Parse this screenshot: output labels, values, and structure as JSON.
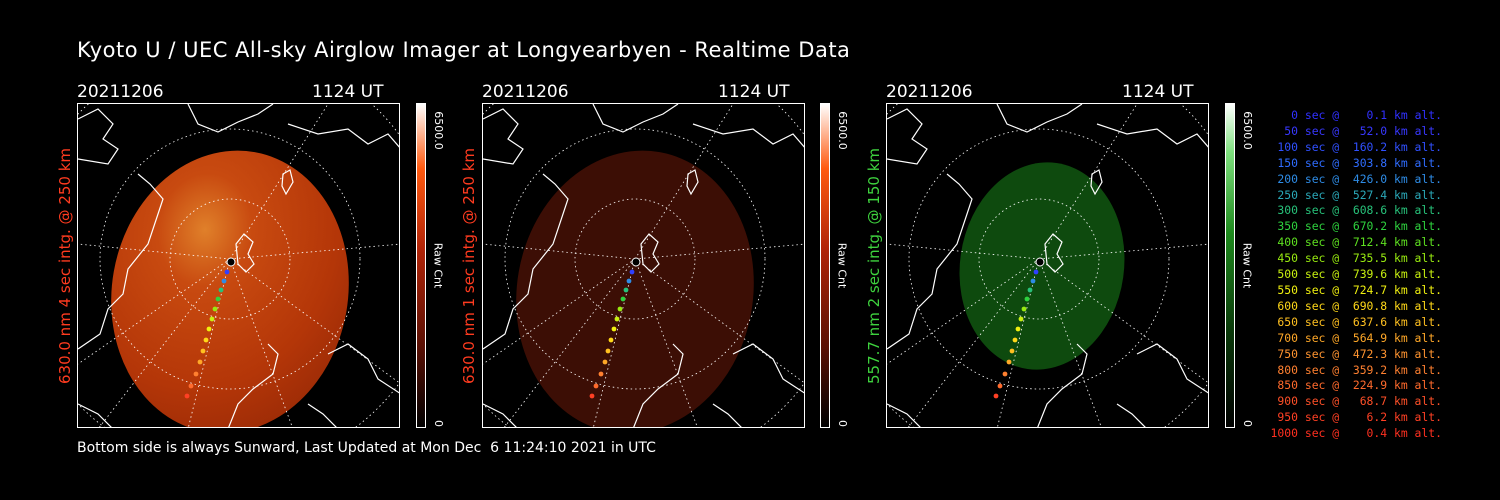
{
  "title": "Kyoto U / UEC All-sky Airglow Imager at Longyearbyen - Realtime Data",
  "footer": "Bottom side is always Sunward, Last Updated at Mon Dec  6 11:24:10 2021 in UTC",
  "colors": {
    "red_label": "#ff3b1f",
    "green_label": "#3ed23e",
    "red_glow": "#c23a08",
    "dim_glow": "#3a0e05",
    "green_glow": "#0c4a0c"
  },
  "panels": [
    {
      "date": "20211206",
      "time": "1124 UT",
      "side_label": "630.0 nm 4 sec intg. @ 250 km",
      "cbar_max": "6500.0",
      "cbar_unit": "Raw Cnt",
      "cbar_min": "0",
      "cbar_color": "red"
    },
    {
      "date": "20211206",
      "time": "1124 UT",
      "side_label": "630.0 nm 1 sec intg. @ 250 km",
      "cbar_max": "6500.0",
      "cbar_unit": "Raw Cnt",
      "cbar_min": "0",
      "cbar_color": "red"
    },
    {
      "date": "20211206",
      "time": "1124 UT",
      "side_label": "557.7 nm 2 sec intg. @ 150 km",
      "cbar_max": "6500.0",
      "cbar_unit": "Raw Cnt",
      "cbar_min": "0",
      "cbar_color": "green"
    }
  ],
  "legend": [
    {
      "text": "0 sec @    0.1 km alt.",
      "color": "#3030ff"
    },
    {
      "text": "50 sec @   52.0 km alt.",
      "color": "#3838ff"
    },
    {
      "text": "100 sec @  160.2 km alt.",
      "color": "#3050ff"
    },
    {
      "text": "150 sec @  303.8 km alt.",
      "color": "#2f6cff"
    },
    {
      "text": "200 sec @  426.0 km alt.",
      "color": "#2e8ce6"
    },
    {
      "text": "250 sec @  527.4 km alt.",
      "color": "#2aa8b8"
    },
    {
      "text": "300 sec @  608.6 km alt.",
      "color": "#27c27a"
    },
    {
      "text": "350 sec @  670.2 km alt.",
      "color": "#2ed23e"
    },
    {
      "text": "400 sec @  712.4 km alt.",
      "color": "#5ee020"
    },
    {
      "text": "450 sec @  735.5 km alt.",
      "color": "#98ea10"
    },
    {
      "text": "500 sec @  739.6 km alt.",
      "color": "#c8f010"
    },
    {
      "text": "550 sec @  724.7 km alt.",
      "color": "#f0f010"
    },
    {
      "text": "600 sec @  690.8 km alt.",
      "color": "#ffd818"
    },
    {
      "text": "650 sec @  637.6 km alt.",
      "color": "#ffc020"
    },
    {
      "text": "700 sec @  564.9 km alt.",
      "color": "#ffa828"
    },
    {
      "text": "750 sec @  472.3 km alt.",
      "color": "#ff9430"
    },
    {
      "text": "800 sec @  359.2 km alt.",
      "color": "#ff8030"
    },
    {
      "text": "850 sec @  224.9 km alt.",
      "color": "#ff6a2c"
    },
    {
      "text": "900 sec @   68.7 km alt.",
      "color": "#ff5028"
    },
    {
      "text": "950 sec @    6.2 km alt.",
      "color": "#ff4024"
    },
    {
      "text": "1000 sec @    0.4 km alt.",
      "color": "#ff3020"
    }
  ]
}
